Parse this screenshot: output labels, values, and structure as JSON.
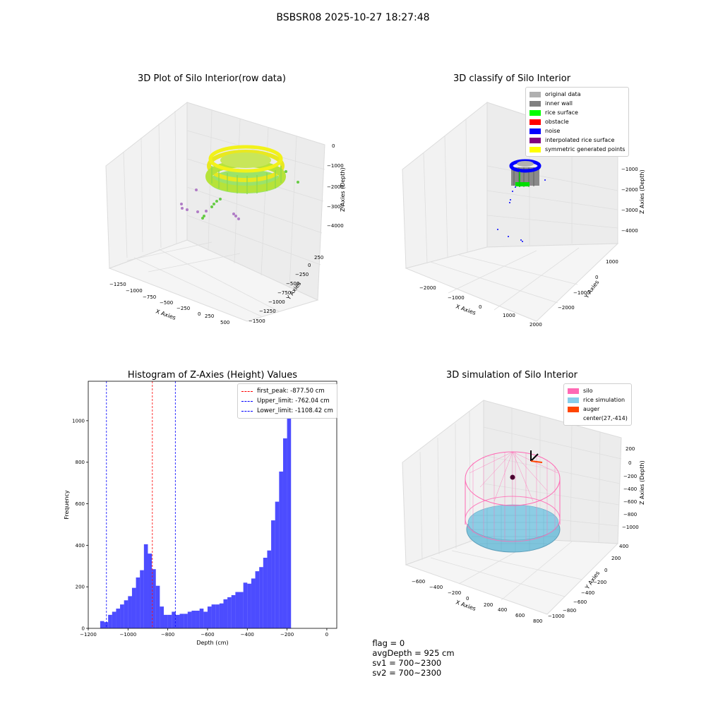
{
  "suptitle": "BSBSR08 2025-10-27 18:27:48",
  "panel1": {
    "title": "3D Plot of Silo Interior(row data)",
    "xlabel": "X Axies",
    "ylabel": "Y Axies",
    "zlabel": "Z Axies (Depth)",
    "xticks": [
      "−1250",
      "−1000",
      "−750",
      "−500",
      "−250",
      "0",
      "250",
      "500"
    ],
    "yticks": [
      "250",
      "0",
      "−250",
      "−500",
      "−750",
      "−1000",
      "−1250",
      "−1500"
    ],
    "zticks": [
      "0",
      "−1000",
      "−2000",
      "−3000",
      "−4000"
    ]
  },
  "panel2": {
    "title": "3D classify of Silo Interior",
    "xlabel": "X Axies",
    "ylabel": "Y Axies",
    "zlabel": "Z Axies (Depth)",
    "xticks": [
      "−2000",
      "−1000",
      "0",
      "1000",
      "2000"
    ],
    "yticks": [
      "1000",
      "0",
      "−1000",
      "−2000"
    ],
    "zticks": [
      "−1000",
      "−2000",
      "−3000",
      "−4000"
    ],
    "legend": [
      {
        "label": "original data",
        "color": "#b0b0b0"
      },
      {
        "label": "inner wall",
        "color": "#808080"
      },
      {
        "label": "rice surface",
        "color": "#00ff00"
      },
      {
        "label": "obstacle",
        "color": "#ff0000"
      },
      {
        "label": "noise",
        "color": "#0000ff"
      },
      {
        "label": "interpolated rice surface",
        "color": "#800080"
      },
      {
        "label": "symmetric generated points",
        "color": "#ffff00"
      }
    ]
  },
  "panel4": {
    "title": "3D simulation of Silo Interior",
    "xlabel": "X Axies",
    "ylabel": "Y Axies",
    "zlabel": "Z Axies (Depth)",
    "xticks": [
      "−600",
      "−400",
      "−200",
      "0",
      "200",
      "400",
      "600",
      "800"
    ],
    "yticks": [
      "400",
      "200",
      "0",
      "−200",
      "−400",
      "−600",
      "−800",
      "−1000"
    ],
    "zticks": [
      "200",
      "0",
      "−200",
      "−400",
      "−600",
      "−800",
      "−1000"
    ],
    "legend": [
      {
        "label": "silo",
        "color": "#ff69b4"
      },
      {
        "label": "rice simulation",
        "color": "#87ceeb"
      },
      {
        "label": "auger",
        "color": "#ff4500"
      },
      {
        "label": "center(27,-414)",
        "color": ""
      }
    ]
  },
  "chart_data": [
    {
      "type": "histogram",
      "title": "Histogram of Z-Axies (Height) Values",
      "xlabel": "Depth (cm)",
      "ylabel": "Frequency",
      "xlim": [
        -1200,
        50
      ],
      "ylim": [
        0,
        1190
      ],
      "xticks": [
        -1200,
        -1000,
        -800,
        -600,
        -400,
        -200,
        0
      ],
      "yticks": [
        0,
        200,
        400,
        600,
        800,
        1000
      ],
      "bar_color": "#0000ff",
      "bin_edges_start": -1140,
      "bin_width": 20,
      "counts": [
        35,
        30,
        65,
        80,
        95,
        115,
        135,
        155,
        195,
        245,
        280,
        405,
        360,
        285,
        205,
        105,
        65,
        65,
        80,
        65,
        70,
        70,
        80,
        85,
        85,
        95,
        80,
        105,
        115,
        115,
        120,
        140,
        150,
        160,
        175,
        175,
        220,
        215,
        240,
        275,
        295,
        340,
        375,
        520,
        610,
        755,
        915,
        1130
      ],
      "vlines": [
        {
          "label": "first_peak: -877.50 cm",
          "x": -877.5,
          "color": "#ff0000"
        },
        {
          "label": "Upper_limit: -762.04 cm",
          "x": -762.04,
          "color": "#0000ff"
        },
        {
          "label": "Lower_limit: -1108.42 cm",
          "x": -1108.42,
          "color": "#0000ff"
        }
      ]
    }
  ],
  "footer": {
    "flag": "flag = 0",
    "avg": "avgDepth = 925 cm",
    "sv1": "sv1 = 700~2300",
    "sv2": "sv2 = 700~2300"
  }
}
